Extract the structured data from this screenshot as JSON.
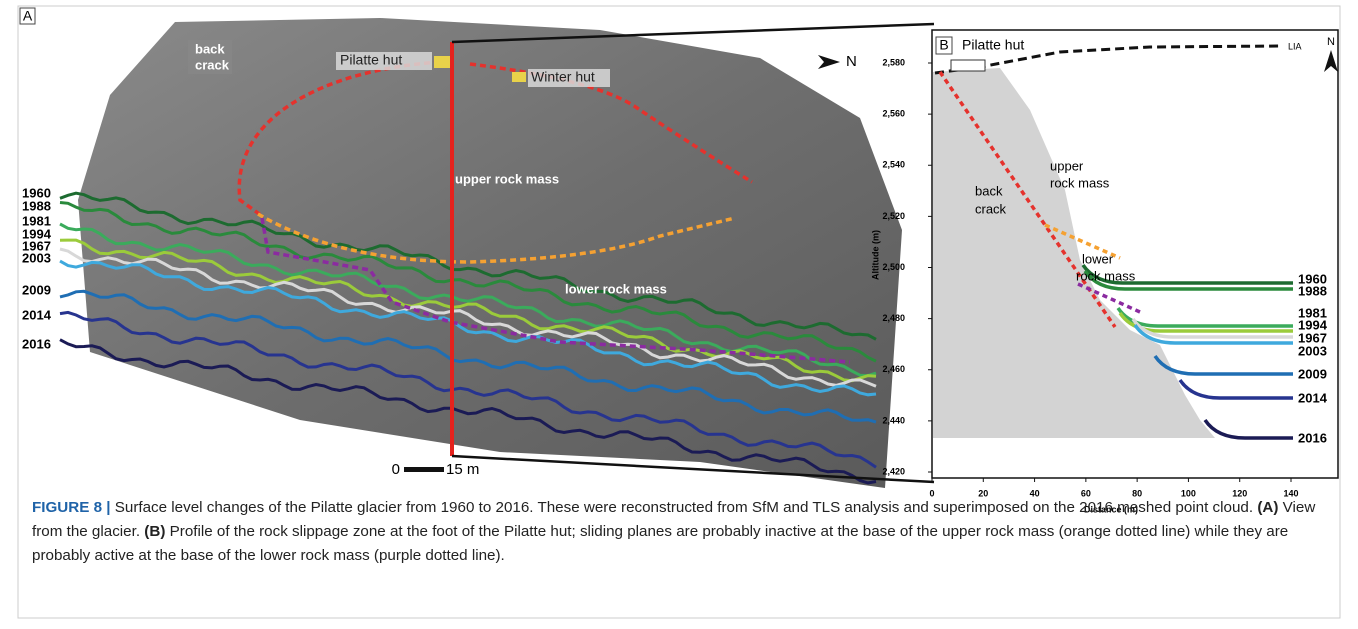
{
  "panel_a": {
    "label": "A",
    "back_crack": [
      "back",
      "crack"
    ],
    "pilatte_hut": "Pilatte hut",
    "winter_hut": "Winter hut",
    "upper_rock_mass": "upper rock mass",
    "lower_rock_mass": "lower rock mass",
    "north": "N",
    "scale_start": "0",
    "scale_end": "15 m",
    "years": [
      {
        "year": "1960",
        "color": "#1d6b30"
      },
      {
        "year": "1988",
        "color": "#2a8a3c"
      },
      {
        "year": "1981",
        "color": "#3bab5c"
      },
      {
        "year": "1994",
        "color": "#9bcb3b"
      },
      {
        "year": "1967",
        "color": "#d8d8d8"
      },
      {
        "year": "2003",
        "color": "#3fa9dd"
      },
      {
        "year": "2009",
        "color": "#1f6eb3"
      },
      {
        "year": "2014",
        "color": "#27348f"
      },
      {
        "year": "2016",
        "color": "#1b1b55"
      }
    ]
  },
  "panel_b": {
    "label": "B",
    "pilatte_hut": "Pilatte hut",
    "lia": "LIA",
    "north": "N",
    "upper_rock_mass": [
      "upper",
      "rock mass"
    ],
    "back_crack": [
      "back",
      "crack"
    ],
    "lower_rock_mass": [
      "lower",
      "rock mass"
    ],
    "y_label": "Altitude (m)",
    "x_label": "Distance (m)",
    "ylim": [
      2420,
      2580
    ],
    "yticks": [
      {
        "value": 2420,
        "label": "2,420"
      },
      {
        "value": 2440,
        "label": "2,440"
      },
      {
        "value": 2460,
        "label": "2,460"
      },
      {
        "value": 2480,
        "label": "2,480"
      },
      {
        "value": 2500,
        "label": "2,500"
      },
      {
        "value": 2520,
        "label": "2,520"
      },
      {
        "value": 2540,
        "label": "2,540"
      },
      {
        "value": 2560,
        "label": "2,560"
      },
      {
        "value": 2580,
        "label": "2,580"
      }
    ],
    "xlim": [
      0,
      140
    ],
    "xticks": [
      0,
      20,
      40,
      60,
      80,
      100,
      120,
      140
    ],
    "years": [
      "1960",
      "1988",
      "1981",
      "1994",
      "1967",
      "2003",
      "2009",
      "2014",
      "2016"
    ]
  },
  "caption": {
    "figure_label": "FIGURE 8 |",
    "text": "Surface level changes of the Pilatte glacier from 1960 to 2016. These were reconstructed from SfM and TLS analysis and superimposed on the 2016 meshed point cloud.",
    "a_label": "(A)",
    "a_text": "View from the glacier.",
    "b_label": "(B)",
    "b_text": "Profile of the rock slippage zone at the foot of the Pilatte hut; sliding planes are probably inactive at the base of the upper rock mass (orange dotted line) while they are probably active at the base of the lower rock mass (purple dotted line)."
  }
}
